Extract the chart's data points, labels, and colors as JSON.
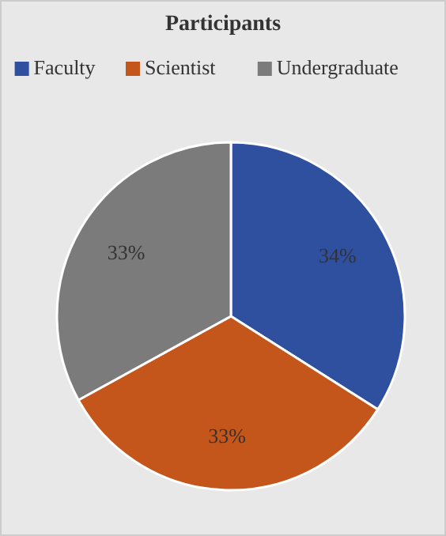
{
  "chart_data": {
    "type": "pie",
    "title": "Participants",
    "categories": [
      "Faculty",
      "Scientist",
      "Undergraduate"
    ],
    "values": [
      34,
      33,
      33
    ],
    "colors": [
      "#2f4f9f",
      "#c5561b",
      "#7b7b7b"
    ],
    "value_labels": [
      "34%",
      "33%",
      "33%"
    ],
    "legend": "top"
  }
}
